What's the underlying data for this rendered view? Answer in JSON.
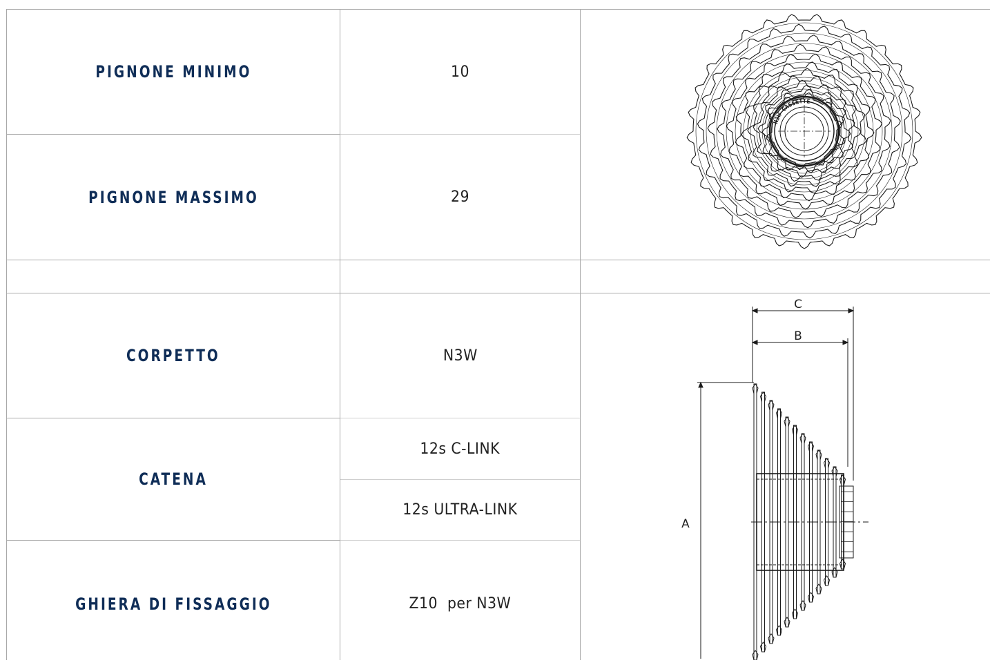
{
  "rows": [
    {
      "label": "PIGNONE MINIMO",
      "values": [
        "10"
      ]
    },
    {
      "label": "PIGNONE MASSIMO",
      "values": [
        "29"
      ]
    },
    {
      "label": "",
      "values": [
        ""
      ]
    },
    {
      "label": "CORPETTO",
      "values": [
        "N3W"
      ]
    },
    {
      "label": "CATENA",
      "values": [
        "12s C-LINK",
        "12s ULTRA-LINK"
      ]
    },
    {
      "label": "GHIERA DI FISSAGGIO",
      "values": [
        "Z10  per N3W"
      ]
    }
  ],
  "figures": {
    "cassette_front": {
      "icon": "cassette-front-view-drawing",
      "hub_text": "N3W CASSETTE"
    },
    "cassette_side": {
      "icon": "cassette-side-view-drawing",
      "dim_labels": [
        "C",
        "B",
        "A"
      ]
    }
  },
  "colors": {
    "label": "#0f2d57",
    "value": "#222222",
    "grid": "#a9a9a9"
  }
}
